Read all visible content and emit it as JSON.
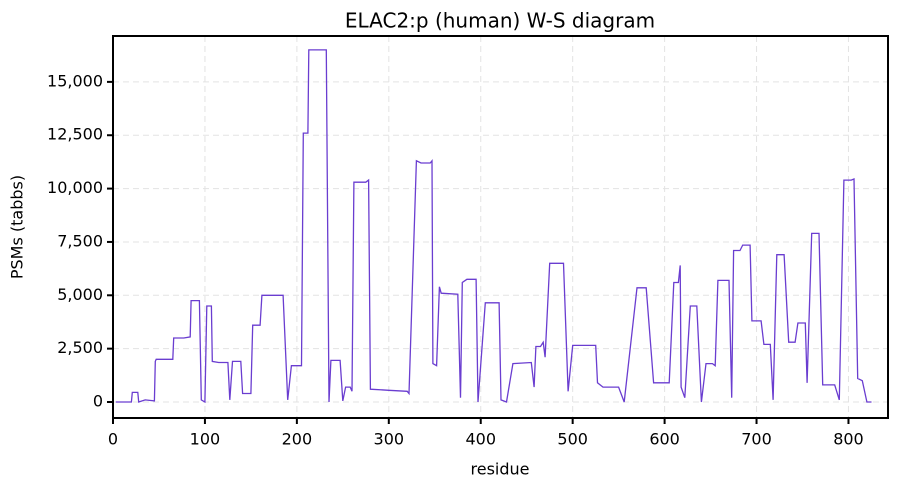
{
  "chart_data": {
    "type": "line",
    "title": "ELAC2:p (human) W-S diagram",
    "x_label": "residue",
    "y_label": "PSMs (tabbs)",
    "xlim": [
      0,
      843
    ],
    "ylim": [
      -750,
      17150
    ],
    "xticks": [
      0,
      100,
      200,
      300,
      400,
      500,
      600,
      700,
      800
    ],
    "yticks": [
      0,
      {
        "value": 2500,
        "label": "2,500"
      },
      {
        "value": 5000,
        "label": "5,000"
      },
      {
        "value": 7500,
        "label": "7,500"
      },
      {
        "value": 10000,
        "label": "10,000"
      },
      {
        "value": 12500,
        "label": "12,500"
      },
      {
        "value": 15000,
        "label": "15,000"
      }
    ],
    "grid": true,
    "x": [
      3,
      20,
      21,
      27,
      28,
      35,
      45,
      46,
      47,
      65,
      66,
      77,
      84,
      85,
      94,
      96,
      100,
      102,
      107,
      108,
      115,
      125,
      127,
      130,
      139,
      141,
      150,
      152,
      160,
      162,
      175,
      185,
      190,
      194,
      205,
      207,
      212,
      213,
      232,
      235,
      237,
      247,
      250,
      253,
      258,
      260,
      262,
      275,
      278,
      280,
      300,
      320,
      322,
      330,
      335,
      345,
      347,
      348,
      352,
      355,
      357,
      375,
      378,
      380,
      385,
      395,
      397,
      405,
      420,
      422,
      428,
      435,
      455,
      458,
      460,
      465,
      468,
      470,
      475,
      490,
      495,
      500,
      525,
      527,
      533,
      550,
      556,
      570,
      580,
      588,
      605,
      610,
      615,
      617,
      618,
      622,
      628,
      635,
      640,
      645,
      652,
      655,
      658,
      670,
      673,
      675,
      682,
      685,
      693,
      695,
      705,
      708,
      715,
      718,
      722,
      730,
      735,
      742,
      745,
      753,
      755,
      760,
      768,
      772,
      785,
      790,
      795,
      803,
      806,
      810,
      815,
      820,
      825
    ],
    "series": [
      {
        "name": "PSMs",
        "color": "#6a3dd0",
        "values": [
          0,
          0,
          450,
          450,
          0,
          100,
          50,
          1900,
          2000,
          2000,
          3000,
          3000,
          3050,
          4750,
          4750,
          100,
          0,
          4500,
          4500,
          1900,
          1850,
          1850,
          100,
          1900,
          1900,
          400,
          400,
          3600,
          3600,
          5000,
          5000,
          5000,
          100,
          1700,
          1700,
          12600,
          12600,
          16500,
          16500,
          0,
          1950,
          1950,
          50,
          700,
          700,
          500,
          10300,
          10300,
          10400,
          600,
          550,
          500,
          400,
          11300,
          11200,
          11200,
          11300,
          1800,
          1700,
          5400,
          5100,
          5050,
          200,
          5600,
          5750,
          5750,
          0,
          4650,
          4650,
          100,
          0,
          1800,
          1850,
          700,
          2600,
          2600,
          2800,
          2100,
          6500,
          6500,
          500,
          2650,
          2650,
          900,
          700,
          700,
          0,
          5350,
          5350,
          900,
          900,
          5600,
          5600,
          6400,
          700,
          200,
          4500,
          4500,
          0,
          1800,
          1800,
          1700,
          5700,
          5700,
          200,
          7100,
          7100,
          7350,
          7350,
          3800,
          3800,
          2700,
          2700,
          100,
          6900,
          6900,
          2800,
          2800,
          3700,
          3700,
          900,
          7900,
          7900,
          800,
          800,
          100,
          10400,
          10400,
          10450,
          1100,
          1000,
          0,
          0
        ]
      }
    ]
  }
}
